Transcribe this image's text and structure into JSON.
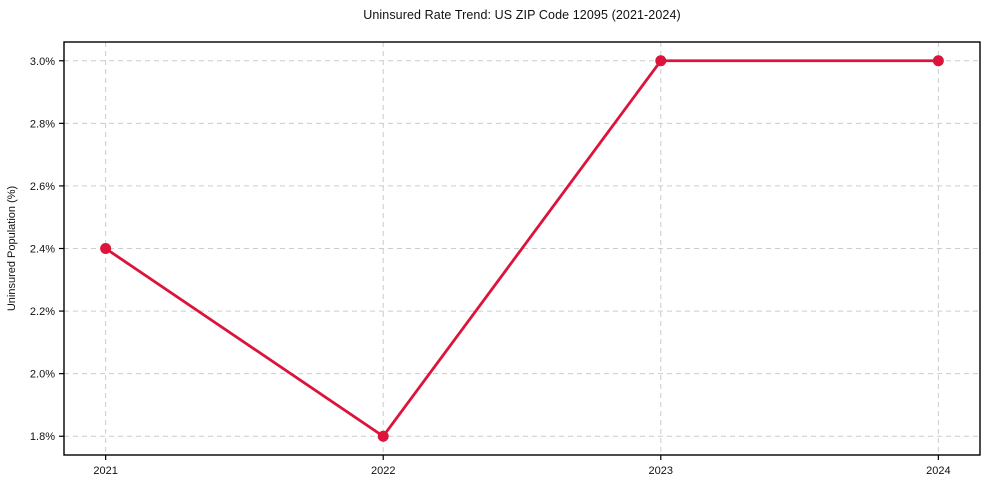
{
  "chart_data": {
    "type": "line",
    "title": "Uninsured Rate Trend: US ZIP Code 12095 (2021-2024)",
    "xlabel": "",
    "ylabel": "Uninsured Population (%)",
    "x": [
      2021,
      2022,
      2023,
      2024
    ],
    "y": [
      2.4,
      1.8,
      3.0,
      3.0
    ],
    "x_tick_labels": [
      "2021",
      "2022",
      "2023",
      "2024"
    ],
    "y_ticks": [
      1.8,
      2.0,
      2.2,
      2.4,
      2.6,
      2.8,
      3.0
    ],
    "y_tick_labels": [
      "1.8%",
      "2.0%",
      "2.2%",
      "2.4%",
      "2.6%",
      "2.8%",
      "3.0%"
    ],
    "xlim": [
      2020.85,
      2024.15
    ],
    "ylim": [
      1.74,
      3.06
    ],
    "grid": true,
    "grid_style": "dashed",
    "legend_position": "none",
    "colors": {
      "line": "#dc143c",
      "marker": "#dc143c",
      "grid": "#cccccc",
      "spine": "#000000",
      "text": "#111111"
    },
    "marker": "o"
  }
}
